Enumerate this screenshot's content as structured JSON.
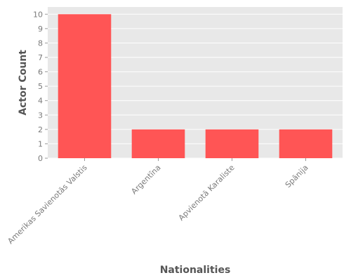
{
  "chart_data": {
    "type": "bar",
    "title": "",
    "xlabel": "Nationalities",
    "ylabel": "Actor Count",
    "categories": [
      "Amerikas Savienotās Valstis",
      "Argentīna",
      "Apvienotā Karaliste",
      "Spānija"
    ],
    "values": [
      10,
      2,
      2,
      2
    ],
    "ylim": [
      0,
      10.5
    ],
    "yticks": [
      0,
      1,
      2,
      3,
      4,
      5,
      6,
      7,
      8,
      9,
      10
    ],
    "grid": true,
    "colors": {
      "bar": "#ff5555",
      "plot_background": "#e8e8e8",
      "grid": "#ffffff"
    }
  }
}
